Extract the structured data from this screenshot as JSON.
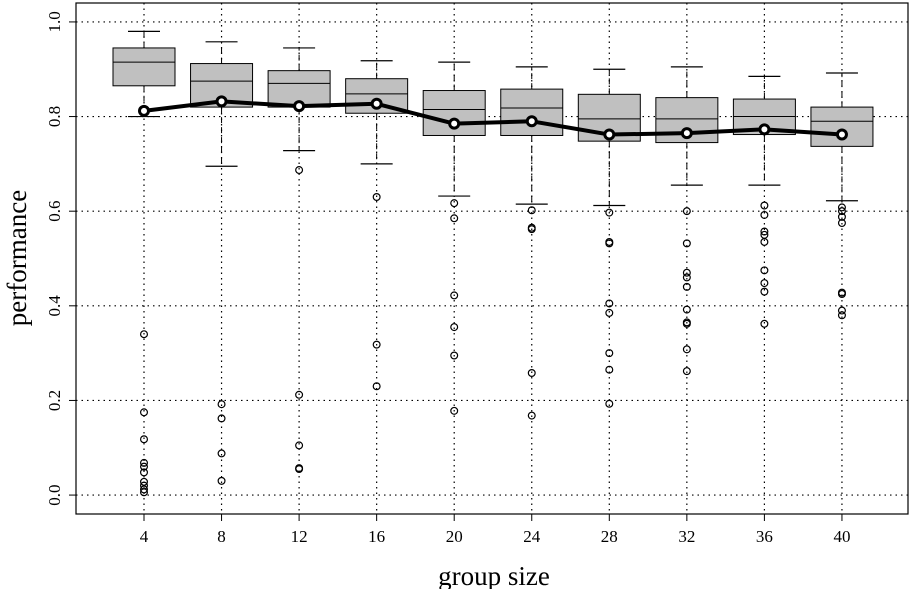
{
  "chart_data": {
    "type": "box",
    "title": "",
    "xlabel": "group size",
    "ylabel": "performance",
    "categories": [
      "4",
      "8",
      "12",
      "16",
      "20",
      "24",
      "28",
      "32",
      "36",
      "40"
    ],
    "yticks": [
      "0.0",
      "0.2",
      "0.4",
      "0.6",
      "0.8",
      "1.0"
    ],
    "ylim": [
      -0.04,
      1.04
    ],
    "grid": true,
    "boxes": [
      {
        "x": 4,
        "whisker_low": 0.8,
        "q1": 0.865,
        "median": 0.915,
        "q3": 0.945,
        "whisker_high": 0.98,
        "outliers": [
          0.34,
          0.175,
          0.118,
          0.068,
          0.06,
          0.048,
          0.028,
          0.02,
          0.012,
          0.006
        ]
      },
      {
        "x": 8,
        "whisker_low": 0.695,
        "q1": 0.82,
        "median": 0.875,
        "q3": 0.912,
        "whisker_high": 0.958,
        "outliers": [
          0.192,
          0.162,
          0.088,
          0.03
        ]
      },
      {
        "x": 12,
        "whisker_low": 0.728,
        "q1": 0.82,
        "median": 0.87,
        "q3": 0.897,
        "whisker_high": 0.945,
        "outliers": [
          0.687,
          0.212,
          0.105,
          0.057,
          0.055
        ]
      },
      {
        "x": 16,
        "whisker_low": 0.7,
        "q1": 0.807,
        "median": 0.848,
        "q3": 0.88,
        "whisker_high": 0.918,
        "outliers": [
          0.63,
          0.318,
          0.23
        ]
      },
      {
        "x": 20,
        "whisker_low": 0.632,
        "q1": 0.76,
        "median": 0.815,
        "q3": 0.855,
        "whisker_high": 0.915,
        "outliers": [
          0.617,
          0.585,
          0.422,
          0.355,
          0.295,
          0.178
        ]
      },
      {
        "x": 24,
        "whisker_low": 0.615,
        "q1": 0.76,
        "median": 0.818,
        "q3": 0.858,
        "whisker_high": 0.905,
        "outliers": [
          0.602,
          0.565,
          0.562,
          0.258,
          0.168
        ]
      },
      {
        "x": 28,
        "whisker_low": 0.612,
        "q1": 0.748,
        "median": 0.795,
        "q3": 0.847,
        "whisker_high": 0.9,
        "outliers": [
          0.597,
          0.535,
          0.532,
          0.405,
          0.385,
          0.3,
          0.265,
          0.193
        ]
      },
      {
        "x": 32,
        "whisker_low": 0.655,
        "q1": 0.745,
        "median": 0.795,
        "q3": 0.84,
        "whisker_high": 0.905,
        "outliers": [
          0.6,
          0.532,
          0.47,
          0.46,
          0.44,
          0.392,
          0.365,
          0.362,
          0.308,
          0.262
        ]
      },
      {
        "x": 36,
        "whisker_low": 0.655,
        "q1": 0.762,
        "median": 0.8,
        "q3": 0.837,
        "whisker_high": 0.885,
        "outliers": [
          0.612,
          0.592,
          0.557,
          0.55,
          0.535,
          0.475,
          0.448,
          0.43,
          0.362
        ]
      },
      {
        "x": 40,
        "whisker_low": 0.622,
        "q1": 0.737,
        "median": 0.79,
        "q3": 0.82,
        "whisker_high": 0.892,
        "outliers": [
          0.608,
          0.6,
          0.588,
          0.575,
          0.428,
          0.425,
          0.39,
          0.38
        ]
      }
    ],
    "series": [
      {
        "type": "line",
        "values": [
          0.812,
          0.832,
          0.822,
          0.827,
          0.785,
          0.79,
          0.762,
          0.765,
          0.773,
          0.762
        ]
      }
    ],
    "colors": {
      "box_fill": "#c0c0c0",
      "line": "#000000",
      "grid": "#000000"
    }
  }
}
